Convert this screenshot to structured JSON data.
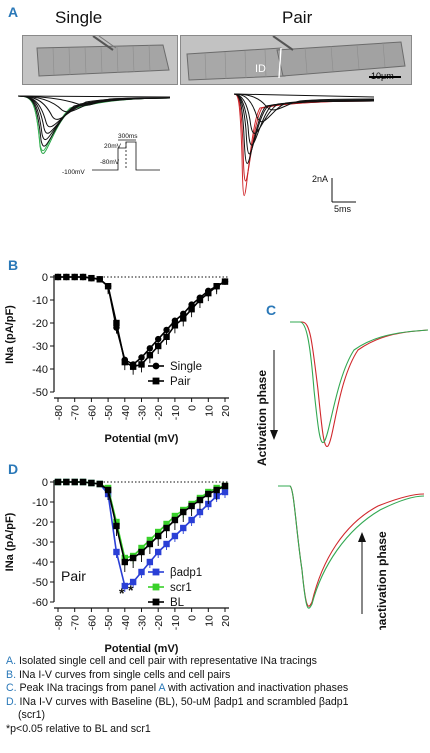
{
  "panelA": {
    "label": "A",
    "titles": [
      "Single",
      "Pair"
    ],
    "scalebar_micro": "10μm",
    "id_label": "ID",
    "protocol_labels": [
      "300ms",
      "20mV",
      "-80mV",
      "-100mV"
    ],
    "scale_current": "2nA",
    "scale_time": "5ms"
  },
  "panelB": {
    "label": "B"
  },
  "panelC": {
    "label": "C",
    "activation_label": "Activation phase",
    "inactivation_label": "Inactivation phase",
    "colors": {
      "red": "#d0282c",
      "green": "#32a852"
    }
  },
  "panelD": {
    "label": "D",
    "inset_label": "Pair",
    "significance": "*"
  },
  "chart_data": [
    {
      "type": "line",
      "panel": "B",
      "xlabel": "Potential (mV)",
      "ylabel": "INa (pA/pF)",
      "xlim": [
        -80,
        20
      ],
      "ylim": [
        -50,
        0
      ],
      "xticks": [
        "-80",
        "-70",
        "-60",
        "-50",
        "-40",
        "-30",
        "-20",
        "-10",
        "0",
        "10",
        "20"
      ],
      "yticks": [
        "0",
        "-10",
        "-20",
        "-30",
        "-40",
        "-50"
      ],
      "x": [
        -80,
        -75,
        -70,
        -65,
        -60,
        -55,
        -50,
        -45,
        -40,
        -35,
        -30,
        -25,
        -20,
        -15,
        -10,
        -5,
        0,
        5,
        10,
        15,
        20
      ],
      "series": [
        {
          "name": "Single",
          "marker": "circle",
          "color": "#000000",
          "values": [
            0,
            0,
            0,
            0,
            -0.5,
            -1,
            -4,
            -22,
            -36,
            -38,
            -35,
            -31,
            -27,
            -23,
            -19,
            -16,
            -12,
            -9,
            -6,
            -4,
            -2
          ]
        },
        {
          "name": "Pair",
          "marker": "square",
          "color": "#000000",
          "values": [
            0,
            0,
            0,
            0,
            -0.5,
            -1,
            -4,
            -20,
            -37,
            -39,
            -38,
            -34,
            -30,
            -26,
            -21,
            -18,
            -14,
            -10,
            -7,
            -4,
            -2
          ]
        }
      ],
      "legend": "bottom-right"
    },
    {
      "type": "line",
      "panel": "D",
      "xlabel": "Potential (mV)",
      "ylabel": "INa (pA/pF)",
      "xlim": [
        -80,
        20
      ],
      "ylim": [
        -60,
        0
      ],
      "xticks": [
        "-80",
        "-70",
        "-60",
        "-50",
        "-40",
        "-30",
        "-20",
        "-10",
        "0",
        "10",
        "20"
      ],
      "yticks": [
        "0",
        "-10",
        "-20",
        "-30",
        "-40",
        "-50",
        "-60"
      ],
      "x": [
        -80,
        -75,
        -70,
        -65,
        -60,
        -55,
        -50,
        -45,
        -40,
        -35,
        -30,
        -25,
        -20,
        -15,
        -10,
        -5,
        0,
        5,
        10,
        15,
        20
      ],
      "series": [
        {
          "name": "βadp1",
          "marker": "square",
          "color": "#2a3fd6",
          "values": [
            0,
            0,
            0,
            0,
            -0.5,
            -1,
            -6,
            -35,
            -52,
            -50,
            -45,
            -40,
            -35,
            -31,
            -27,
            -23,
            -19,
            -15,
            -11,
            -7,
            -5
          ]
        },
        {
          "name": "scr1",
          "marker": "square",
          "color": "#39d12a",
          "values": [
            0,
            0,
            0,
            0,
            -0.5,
            -1,
            -3,
            -20,
            -38,
            -37,
            -33,
            -29,
            -25,
            -21,
            -17,
            -14,
            -11,
            -8,
            -5,
            -3,
            -2
          ]
        },
        {
          "name": "BL",
          "marker": "square",
          "color": "#000000",
          "values": [
            0,
            0,
            0,
            0,
            -0.5,
            -1,
            -4,
            -22,
            -40,
            -38,
            -35,
            -31,
            -27,
            -23,
            -19,
            -15,
            -12,
            -9,
            -6,
            -4,
            -2
          ]
        }
      ],
      "legend": "bottom-right"
    }
  ],
  "caption": {
    "lines": [
      {
        "letter": "A.",
        "text": " Isolated single cell and cell pair with representative INa tracings"
      },
      {
        "letter": "B.",
        "text": " INa I-V curves from single cells and cell pairs"
      },
      {
        "letter": "C.",
        "pre": " Peak INa tracings from panel ",
        "hl": "A",
        "post": " with activation and inactivation phases"
      },
      {
        "letter": "D.",
        "text": " INa I-V curves with Baseline (BL), 50-uM βadp1 and scrambled βadp1"
      },
      {
        "indent": "(scr1)"
      },
      {
        "plain": "*p<0.05 relative to BL and scr1"
      }
    ]
  }
}
